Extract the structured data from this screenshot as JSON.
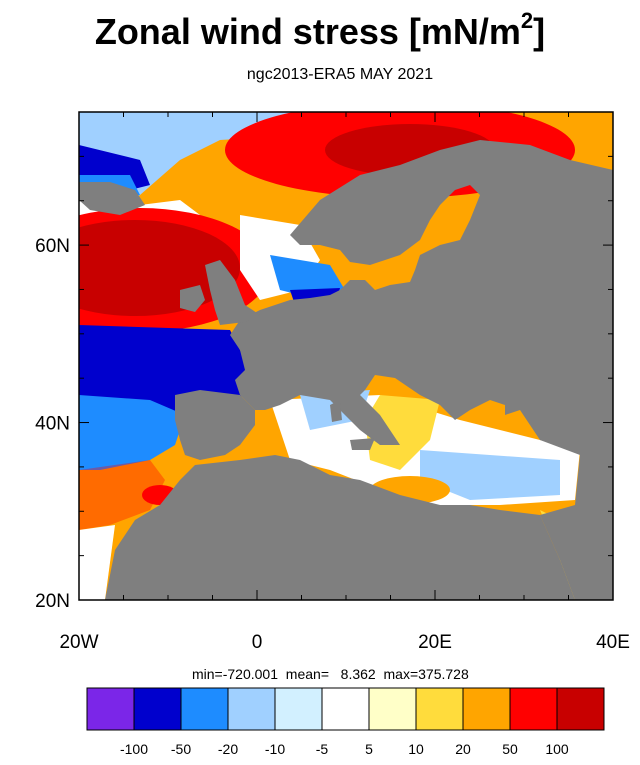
{
  "title": {
    "text": "Zonal wind stress [mN/m",
    "superscript": "2",
    "suffix": "]"
  },
  "subtitle": "ngc2013-ERA5  MAY 2021",
  "stats": {
    "min_label": "min=",
    "min": "-720.001",
    "mean_label": "mean=",
    "mean": "8.362",
    "max_label": "max=",
    "max": "375.728"
  },
  "map": {
    "lon_range": [
      -20,
      40
    ],
    "lat_range": [
      20,
      75
    ],
    "land_color": "#7f7f7f",
    "x_ticks": [
      {
        "value": -20,
        "label": "20W"
      },
      {
        "value": 0,
        "label": "0"
      },
      {
        "value": 20,
        "label": "20E"
      },
      {
        "value": 40,
        "label": "40E"
      }
    ],
    "y_ticks": [
      {
        "value": 60,
        "label": "60N"
      },
      {
        "value": 40,
        "label": "40N"
      },
      {
        "value": 20,
        "label": "20N"
      }
    ]
  },
  "colorbar": {
    "colors": [
      "#7b26e8",
      "#0000cd",
      "#1e8cff",
      "#a0d0ff",
      "#d2f0ff",
      "#ffffff",
      "#ffffc8",
      "#ffdc3c",
      "#ffa500",
      "#ff0000",
      "#c80000"
    ],
    "labels": [
      "-100",
      "-50",
      "-20",
      "-10",
      "-5",
      "5",
      "10",
      "20",
      "50",
      "100"
    ]
  }
}
